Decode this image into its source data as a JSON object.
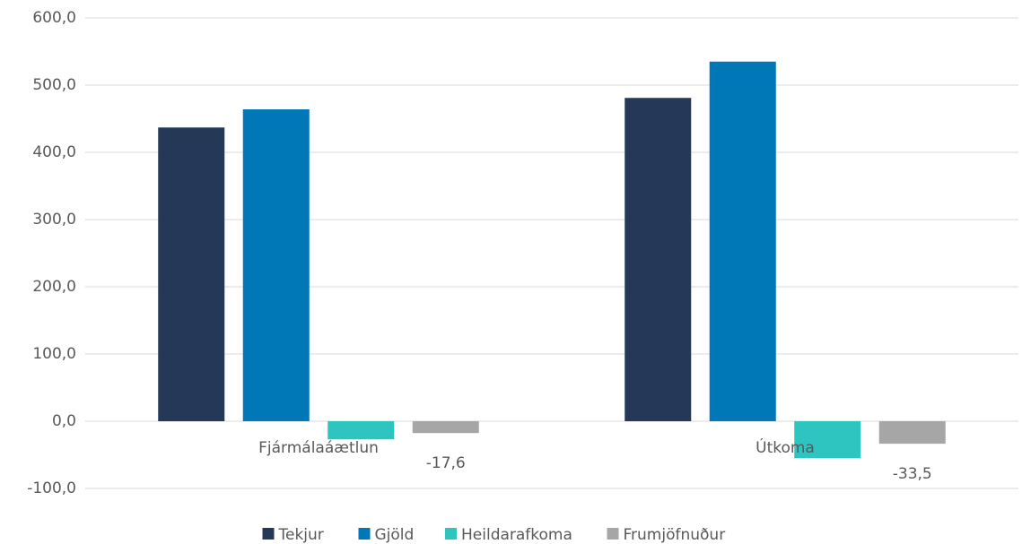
{
  "chart_data": {
    "type": "bar",
    "categories": [
      "Fjármálaáætlun",
      "Útkoma"
    ],
    "series": [
      {
        "name": "Tekjur",
        "color": "#253858",
        "values": [
          437,
          481
        ]
      },
      {
        "name": "Gjöld",
        "color": "#0077b6",
        "values": [
          464,
          535
        ]
      },
      {
        "name": "Heildarafkoma",
        "color": "#2ec4bf",
        "values": [
          -27,
          -55
        ]
      },
      {
        "name": "Frumjöfnuður",
        "color": "#a6a6a6",
        "values": [
          -17.6,
          -33.5
        ],
        "value_labels": [
          "-17,6",
          "-33,5"
        ]
      }
    ],
    "ylim": [
      -100,
      600
    ],
    "yticks": [
      {
        "value": -100,
        "label": "-100,0"
      },
      {
        "value": 0,
        "label": "0,0"
      },
      {
        "value": 100,
        "label": "100,0"
      },
      {
        "value": 200,
        "label": "200,0"
      },
      {
        "value": 300,
        "label": "300,0"
      },
      {
        "value": 400,
        "label": "400,0"
      },
      {
        "value": 500,
        "label": "500,0"
      },
      {
        "value": 600,
        "label": "600,0"
      }
    ],
    "grid": true,
    "legend": "bottom"
  }
}
